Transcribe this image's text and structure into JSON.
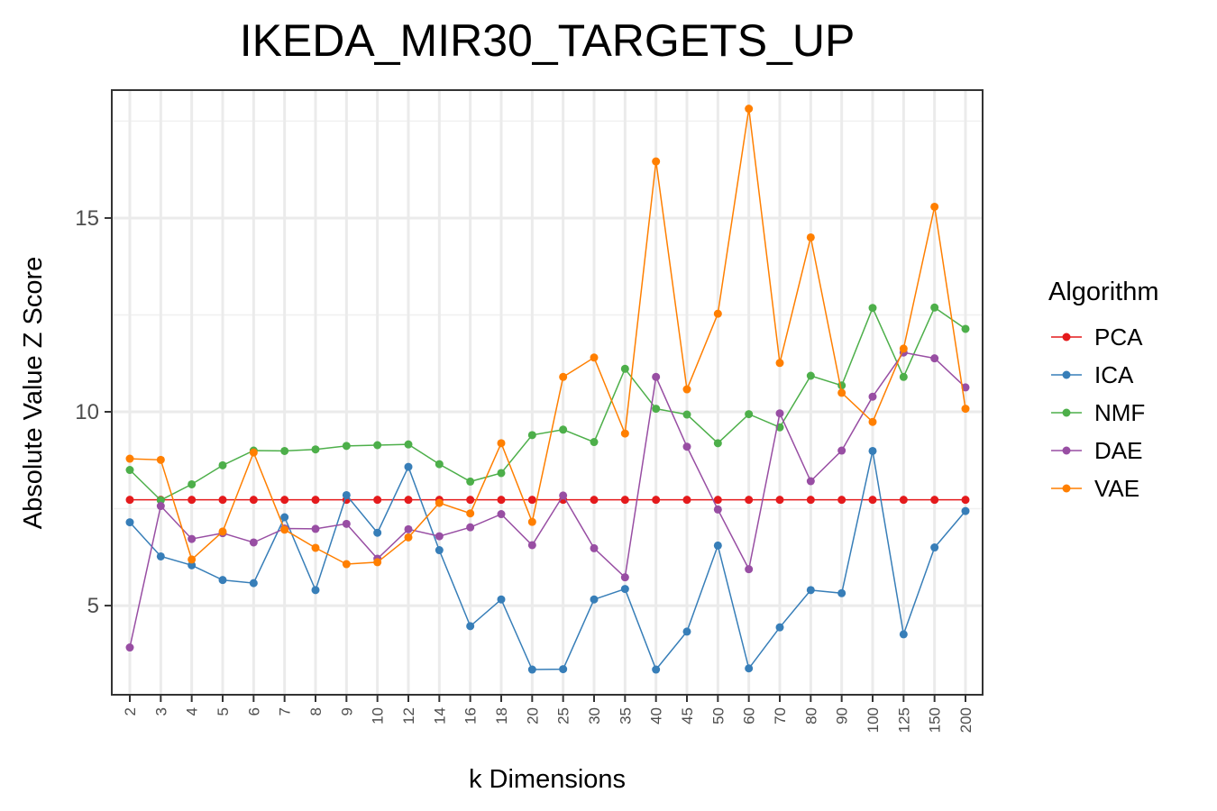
{
  "chart_data": {
    "type": "line",
    "title": "IKEDA_MIR30_TARGETS_UP",
    "xlabel": "k Dimensions",
    "ylabel": "Absolute Value Z Score",
    "categories": [
      "2",
      "3",
      "4",
      "5",
      "6",
      "7",
      "8",
      "9",
      "10",
      "12",
      "14",
      "16",
      "18",
      "20",
      "25",
      "30",
      "35",
      "40",
      "45",
      "50",
      "60",
      "70",
      "80",
      "90",
      "100",
      "125",
      "150",
      "200"
    ],
    "ylim": [
      2.7,
      18.3
    ],
    "yticks": [
      5,
      10,
      15
    ],
    "grid": true,
    "legend_title": "Algorithm",
    "legend_position": "right",
    "series": [
      {
        "name": "PCA",
        "color": "#e41a1c",
        "values": [
          7.73,
          7.73,
          7.73,
          7.73,
          7.73,
          7.73,
          7.73,
          7.73,
          7.73,
          7.73,
          7.73,
          7.73,
          7.73,
          7.73,
          7.73,
          7.73,
          7.73,
          7.73,
          7.73,
          7.73,
          7.73,
          7.73,
          7.73,
          7.73,
          7.73,
          7.73,
          7.73,
          7.73
        ]
      },
      {
        "name": "ICA",
        "color": "#377eb8",
        "values": [
          7.15,
          6.27,
          6.04,
          5.66,
          5.58,
          7.28,
          5.4,
          7.85,
          6.88,
          8.58,
          6.43,
          4.47,
          5.16,
          3.35,
          3.36,
          5.16,
          5.43,
          3.35,
          4.33,
          6.55,
          3.38,
          4.44,
          5.4,
          5.32,
          8.99,
          4.26,
          6.5,
          7.44
        ]
      },
      {
        "name": "NMF",
        "color": "#4daf4a",
        "values": [
          8.5,
          7.72,
          8.13,
          8.62,
          9.0,
          8.99,
          9.03,
          9.12,
          9.14,
          9.16,
          8.65,
          8.2,
          8.42,
          9.4,
          9.54,
          9.22,
          11.11,
          10.08,
          9.93,
          9.19,
          9.94,
          9.6,
          10.93,
          10.68,
          12.68,
          10.9,
          12.69,
          12.14
        ]
      },
      {
        "name": "DAE",
        "color": "#984ea3",
        "values": [
          3.92,
          7.57,
          6.72,
          6.87,
          6.63,
          6.99,
          6.98,
          7.11,
          6.21,
          6.97,
          6.79,
          7.02,
          7.36,
          6.56,
          7.84,
          6.48,
          5.73,
          10.9,
          9.1,
          7.48,
          5.94,
          9.96,
          8.21,
          9.0,
          10.39,
          11.53,
          11.38,
          10.63
        ]
      },
      {
        "name": "VAE",
        "color": "#ff7f00",
        "values": [
          8.79,
          8.76,
          6.19,
          6.91,
          8.95,
          6.96,
          6.49,
          6.07,
          6.12,
          6.76,
          7.65,
          7.38,
          9.19,
          7.16,
          10.9,
          11.4,
          9.44,
          16.46,
          10.58,
          12.53,
          17.82,
          11.26,
          14.5,
          10.49,
          9.74,
          11.63,
          15.29,
          10.08
        ]
      }
    ]
  }
}
